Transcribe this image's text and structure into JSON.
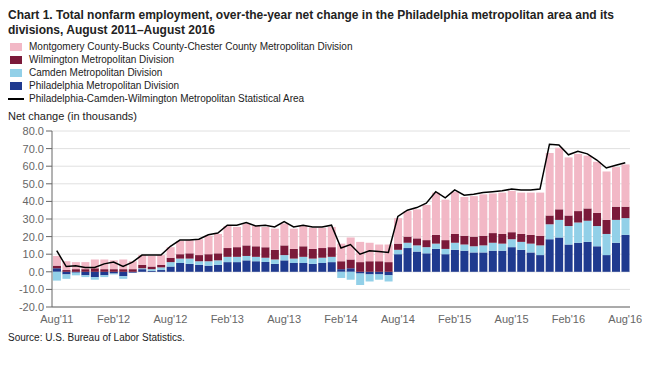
{
  "chart_data": {
    "type": "bar",
    "title": "Chart 1. Total nonfarm employment, over-the-year net change in the Philadelphia metropolitan area and its divisions, August 2011–August 2016",
    "ylabel": "Net change (in thousands)",
    "annotations": [
      "Source: U.S. Bureau of Labor Statistics."
    ],
    "categories": [
      "Aug'11",
      null,
      null,
      null,
      null,
      null,
      "Feb'12",
      null,
      null,
      null,
      null,
      null,
      "Aug'12",
      null,
      null,
      null,
      null,
      null,
      "Feb'13",
      null,
      null,
      null,
      null,
      null,
      "Aug'13",
      null,
      null,
      null,
      null,
      null,
      "Feb'14",
      null,
      null,
      null,
      null,
      null,
      "Aug'14",
      null,
      null,
      null,
      null,
      null,
      "Feb'15",
      null,
      null,
      null,
      null,
      null,
      "Aug'15",
      null,
      null,
      null,
      null,
      null,
      "Feb'16",
      null,
      null,
      null,
      null,
      null,
      "Aug'16"
    ],
    "stacked": true,
    "grid": true,
    "legend": "upper left",
    "ylim": [
      -20.0,
      80.0
    ],
    "yticks": [
      {
        "value": -20.0,
        "label": "-20.0"
      },
      {
        "value": -10.0,
        "label": "-10.0"
      },
      {
        "value": 0.0,
        "label": "0.0"
      },
      {
        "value": 10.0,
        "label": "10.0"
      },
      {
        "value": 20.0,
        "label": "20.0"
      },
      {
        "value": 30.0,
        "label": "30.0"
      },
      {
        "value": 40.0,
        "label": "40.0"
      },
      {
        "value": 50.0,
        "label": "50.0"
      },
      {
        "value": 60.0,
        "label": "60.0"
      },
      {
        "value": 70.0,
        "label": "70.0"
      },
      {
        "value": 80.0,
        "label": "80.0"
      }
    ],
    "series": [
      {
        "name": "Philadelphia Metropolitan Division",
        "type": "bar",
        "color": "#1f3a8f",
        "values": [
          2.0,
          -1.5,
          -0.5,
          -2.0,
          -3.0,
          -2.0,
          -1.0,
          -2.5,
          -0.5,
          1.5,
          0.5,
          1.0,
          3.0,
          5.0,
          4.5,
          4.0,
          3.5,
          4.0,
          5.5,
          5.5,
          6.5,
          6.0,
          5.5,
          4.5,
          6.5,
          5.0,
          5.0,
          4.5,
          5.0,
          5.5,
          1.5,
          2.0,
          -1.0,
          -1.5,
          -1.5,
          -2.0,
          10.0,
          13.5,
          11.5,
          10.5,
          13.0,
          10.0,
          12.5,
          12.0,
          11.0,
          11.0,
          12.0,
          12.0,
          14.0,
          12.5,
          11.0,
          9.5,
          18.5,
          19.5,
          15.5,
          16.5,
          17.0,
          14.5,
          9.5,
          16.5,
          21.0
        ]
      },
      {
        "name": "Camden Metropolitan Division",
        "type": "bar",
        "color": "#92d0e8",
        "values": [
          -5.0,
          -2.5,
          -1.5,
          -1.0,
          -1.5,
          -1.0,
          -0.5,
          -1.5,
          0.0,
          0.5,
          1.0,
          1.5,
          2.5,
          2.5,
          3.0,
          2.0,
          2.5,
          2.5,
          3.0,
          3.0,
          2.5,
          2.5,
          2.5,
          2.5,
          3.0,
          2.5,
          3.5,
          3.0,
          3.0,
          3.0,
          -3.5,
          -4.5,
          -6.5,
          -4.0,
          -3.0,
          -3.5,
          2.5,
          3.0,
          3.5,
          3.5,
          3.0,
          3.0,
          4.0,
          3.5,
          3.5,
          4.0,
          4.5,
          4.0,
          4.5,
          4.5,
          5.0,
          5.5,
          8.5,
          10.0,
          10.5,
          11.5,
          12.0,
          11.5,
          12.0,
          13.0,
          9.5
        ]
      },
      {
        "name": "Wilmington Metropolitan Division",
        "type": "bar",
        "color": "#7b1a3a",
        "values": [
          1.5,
          1.0,
          1.5,
          1.5,
          2.0,
          1.5,
          1.5,
          1.5,
          1.5,
          2.0,
          1.5,
          1.5,
          2.5,
          2.5,
          3.0,
          3.5,
          4.0,
          4.0,
          5.0,
          5.5,
          6.0,
          6.0,
          6.0,
          5.5,
          5.5,
          5.5,
          6.0,
          5.5,
          5.5,
          5.5,
          4.5,
          5.0,
          5.5,
          6.0,
          6.0,
          5.5,
          3.5,
          3.5,
          4.0,
          4.0,
          5.0,
          5.0,
          5.0,
          5.0,
          5.5,
          5.5,
          5.5,
          5.5,
          4.0,
          4.5,
          5.0,
          5.5,
          5.0,
          6.0,
          6.0,
          6.5,
          7.0,
          7.5,
          8.0,
          7.5,
          6.5
        ]
      },
      {
        "name": "Montgomery County-Bucks County-Chester County Metropolitan Division",
        "type": "bar",
        "color": "#f2b8c6",
        "values": [
          5.5,
          5.0,
          4.0,
          4.0,
          5.0,
          5.5,
          5.0,
          5.5,
          4.5,
          5.5,
          6.0,
          5.5,
          6.0,
          7.5,
          7.5,
          9.0,
          10.5,
          11.0,
          12.5,
          11.5,
          12.5,
          11.5,
          11.5,
          12.0,
          12.5,
          11.5,
          11.5,
          12.0,
          11.5,
          11.5,
          10.0,
          12.5,
          11.5,
          10.5,
          9.5,
          10.0,
          14.5,
          14.5,
          16.5,
          20.0,
          24.0,
          23.0,
          24.0,
          22.0,
          23.0,
          23.5,
          22.5,
          23.5,
          23.5,
          23.5,
          24.0,
          24.5,
          35.5,
          35.0,
          33.0,
          32.5,
          30.0,
          29.0,
          27.5,
          22.5,
          24.0
        ]
      },
      {
        "name": "Philadelphia-Camden-Wilmington Metropolitan Statistical Area",
        "type": "line",
        "color": "#000000",
        "values": [
          12.0,
          3.0,
          3.5,
          2.5,
          2.5,
          4.5,
          5.5,
          3.0,
          5.5,
          9.5,
          9.5,
          9.5,
          14.5,
          18.0,
          18.0,
          18.5,
          21.0,
          22.0,
          26.5,
          26.5,
          28.0,
          26.0,
          26.5,
          25.5,
          28.5,
          25.5,
          26.5,
          25.5,
          25.5,
          26.5,
          13.5,
          15.5,
          10.0,
          12.0,
          11.5,
          11.0,
          31.5,
          35.0,
          36.5,
          39.0,
          45.5,
          42.0,
          46.5,
          43.5,
          44.0,
          45.0,
          45.5,
          46.0,
          47.0,
          46.5,
          46.5,
          47.0,
          72.5,
          72.0,
          66.5,
          68.5,
          67.0,
          63.5,
          59.0,
          60.5,
          62.0
        ]
      }
    ]
  }
}
